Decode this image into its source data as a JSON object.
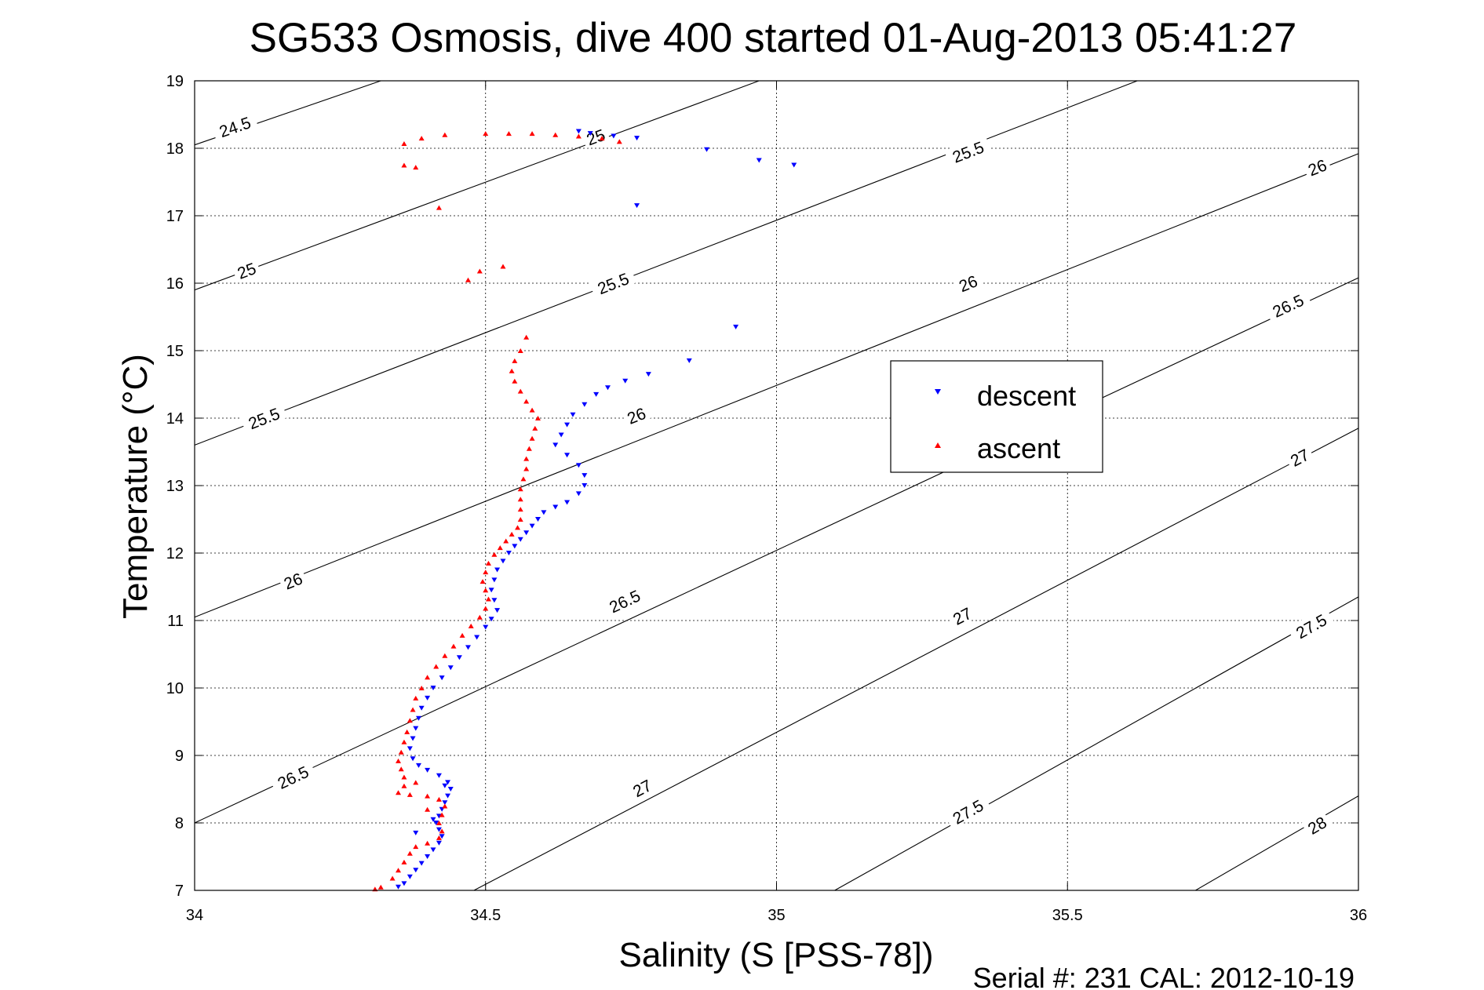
{
  "chart_data": {
    "type": "scatter",
    "title": "SG533 Osmosis, dive 400 started 01-Aug-2013 05:41:27",
    "xlabel": "Salinity (S [PSS-78])",
    "ylabel": "Temperature (°C)",
    "xlim": [
      34,
      36
    ],
    "ylim": [
      7,
      19
    ],
    "xticks": [
      "34",
      "34.5",
      "35",
      "35.5",
      "36"
    ],
    "yticks": [
      "7",
      "8",
      "9",
      "10",
      "11",
      "12",
      "13",
      "14",
      "15",
      "16",
      "17",
      "18",
      "19"
    ],
    "grid": true,
    "legend_position": "right",
    "footer": "Serial #: 231  CAL: 2012-10-19",
    "contours": [
      {
        "label": "24.5",
        "points": [
          [
            34,
            18.05
          ],
          [
            34.32,
            19
          ]
        ],
        "label_at": [
          34.07,
          18.3
        ]
      },
      {
        "label": "25",
        "points": [
          [
            34,
            15.9
          ],
          [
            34.97,
            19
          ]
        ],
        "label_at": [
          34.09,
          16.17
        ]
      },
      {
        "label": "25",
        "points": [
          [
            34,
            15.9
          ],
          [
            34.97,
            19
          ]
        ],
        "label_at": [
          34.69,
          18.15
        ]
      },
      {
        "label": "25.5",
        "points": [
          [
            34,
            13.6
          ],
          [
            35.62,
            19
          ]
        ],
        "label_at": [
          34.12,
          13.98
        ]
      },
      {
        "label": "25.5",
        "points": [
          [
            34,
            13.6
          ],
          [
            35.62,
            19
          ]
        ],
        "label_at": [
          34.72,
          15.98
        ]
      },
      {
        "label": "25.5",
        "points": [
          [
            34,
            13.6
          ],
          [
            35.62,
            19
          ]
        ],
        "label_at": [
          35.33,
          17.93
        ]
      },
      {
        "label": "26",
        "points": [
          [
            34,
            11.05
          ],
          [
            36,
            17.92
          ]
        ],
        "label_at": [
          34.17,
          11.57
        ]
      },
      {
        "label": "26",
        "points": [
          [
            34,
            11.05
          ],
          [
            36,
            17.92
          ]
        ],
        "label_at": [
          34.76,
          14.02
        ]
      },
      {
        "label": "26",
        "points": [
          [
            34,
            11.05
          ],
          [
            36,
            17.92
          ]
        ],
        "label_at": [
          35.33,
          15.98
        ]
      },
      {
        "label": "26",
        "points": [
          [
            34,
            11.05
          ],
          [
            36,
            17.92
          ]
        ],
        "label_at": [
          35.93,
          17.7
        ]
      },
      {
        "label": "26.5",
        "points": [
          [
            34,
            8.0
          ],
          [
            36,
            16.08
          ]
        ],
        "label_at": [
          34.17,
          8.66
        ]
      },
      {
        "label": "26.5",
        "points": [
          [
            34,
            8.0
          ],
          [
            36,
            16.08
          ]
        ],
        "label_at": [
          34.74,
          11.27
        ]
      },
      {
        "label": "26.5",
        "points": [
          [
            34,
            8.0
          ],
          [
            36,
            16.08
          ]
        ],
        "label_at": [
          35.88,
          15.65
        ]
      },
      {
        "label": "27",
        "points": [
          [
            34.48,
            7.0
          ],
          [
            36,
            13.85
          ]
        ],
        "label_at": [
          34.77,
          8.5
        ]
      },
      {
        "label": "27",
        "points": [
          [
            34.48,
            7.0
          ],
          [
            36,
            13.85
          ]
        ],
        "label_at": [
          35.32,
          11.05
        ]
      },
      {
        "label": "27",
        "points": [
          [
            34.48,
            7.0
          ],
          [
            36,
            13.85
          ]
        ],
        "label_at": [
          35.9,
          13.4
        ]
      },
      {
        "label": "27.5",
        "points": [
          [
            35.1,
            7.0
          ],
          [
            36,
            11.35
          ]
        ],
        "label_at": [
          35.33,
          8.15
        ]
      },
      {
        "label": "27.5",
        "points": [
          [
            35.1,
            7.0
          ],
          [
            36,
            11.35
          ]
        ],
        "label_at": [
          35.92,
          10.9
        ]
      },
      {
        "label": "28",
        "points": [
          [
            35.72,
            7.0
          ],
          [
            36,
            8.4
          ]
        ],
        "label_at": [
          35.93,
          7.95
        ]
      }
    ],
    "series": [
      {
        "name": "descent",
        "color": "#0000ff",
        "marker": "triangle-down",
        "points": [
          [
            34.66,
            18.25
          ],
          [
            34.68,
            18.22
          ],
          [
            34.72,
            18.18
          ],
          [
            34.76,
            18.15
          ],
          [
            34.88,
            17.98
          ],
          [
            34.97,
            17.82
          ],
          [
            35.03,
            17.75
          ],
          [
            34.76,
            17.15
          ],
          [
            34.93,
            15.35
          ],
          [
            34.85,
            14.85
          ],
          [
            34.78,
            14.65
          ],
          [
            34.74,
            14.55
          ],
          [
            34.71,
            14.45
          ],
          [
            34.69,
            14.35
          ],
          [
            34.67,
            14.2
          ],
          [
            34.65,
            14.05
          ],
          [
            34.64,
            13.9
          ],
          [
            34.63,
            13.75
          ],
          [
            34.62,
            13.6
          ],
          [
            34.64,
            13.45
          ],
          [
            34.66,
            13.3
          ],
          [
            34.67,
            13.15
          ],
          [
            34.67,
            13.0
          ],
          [
            34.66,
            12.88
          ],
          [
            34.64,
            12.75
          ],
          [
            34.62,
            12.68
          ],
          [
            34.6,
            12.6
          ],
          [
            34.59,
            12.5
          ],
          [
            34.58,
            12.4
          ],
          [
            34.57,
            12.3
          ],
          [
            34.56,
            12.2
          ],
          [
            34.55,
            12.1
          ],
          [
            34.54,
            12.0
          ],
          [
            34.53,
            11.88
          ],
          [
            34.52,
            11.75
          ],
          [
            34.515,
            11.6
          ],
          [
            34.51,
            11.45
          ],
          [
            34.515,
            11.3
          ],
          [
            34.52,
            11.15
          ],
          [
            34.51,
            11.02
          ],
          [
            34.5,
            10.9
          ],
          [
            34.485,
            10.75
          ],
          [
            34.47,
            10.6
          ],
          [
            34.455,
            10.45
          ],
          [
            34.44,
            10.3
          ],
          [
            34.425,
            10.15
          ],
          [
            34.41,
            10.0
          ],
          [
            34.4,
            9.85
          ],
          [
            34.39,
            9.7
          ],
          [
            34.385,
            9.55
          ],
          [
            34.38,
            9.4
          ],
          [
            34.375,
            9.25
          ],
          [
            34.37,
            9.1
          ],
          [
            34.375,
            8.95
          ],
          [
            34.385,
            8.85
          ],
          [
            34.4,
            8.78
          ],
          [
            34.42,
            8.7
          ],
          [
            34.435,
            8.6
          ],
          [
            34.44,
            8.5
          ],
          [
            34.435,
            8.4
          ],
          [
            34.43,
            8.3
          ],
          [
            34.425,
            8.2
          ],
          [
            34.42,
            8.1
          ],
          [
            34.415,
            8.0
          ],
          [
            34.42,
            7.9
          ],
          [
            34.425,
            7.8
          ],
          [
            34.42,
            7.7
          ],
          [
            34.41,
            7.6
          ],
          [
            34.4,
            7.5
          ],
          [
            34.39,
            7.4
          ],
          [
            34.38,
            7.3
          ],
          [
            34.37,
            7.2
          ],
          [
            34.36,
            7.1
          ],
          [
            34.35,
            7.05
          ],
          [
            34.43,
            8.55
          ],
          [
            34.41,
            8.05
          ],
          [
            34.38,
            7.85
          ]
        ]
      },
      {
        "name": "ascent",
        "color": "#ff0000",
        "marker": "triangle-up",
        "points": [
          [
            34.36,
            18.07
          ],
          [
            34.39,
            18.15
          ],
          [
            34.43,
            18.2
          ],
          [
            34.5,
            18.22
          ],
          [
            34.54,
            18.22
          ],
          [
            34.58,
            18.22
          ],
          [
            34.62,
            18.2
          ],
          [
            34.66,
            18.18
          ],
          [
            34.7,
            18.15
          ],
          [
            34.73,
            18.1
          ],
          [
            34.36,
            17.75
          ],
          [
            34.38,
            17.72
          ],
          [
            34.42,
            17.12
          ],
          [
            34.53,
            16.25
          ],
          [
            34.49,
            16.18
          ],
          [
            34.47,
            16.05
          ],
          [
            34.57,
            15.2
          ],
          [
            34.56,
            15.0
          ],
          [
            34.55,
            14.85
          ],
          [
            34.545,
            14.7
          ],
          [
            34.55,
            14.55
          ],
          [
            34.56,
            14.4
          ],
          [
            34.57,
            14.25
          ],
          [
            34.58,
            14.12
          ],
          [
            34.59,
            14.0
          ],
          [
            34.585,
            13.85
          ],
          [
            34.58,
            13.7
          ],
          [
            34.575,
            13.55
          ],
          [
            34.57,
            13.4
          ],
          [
            34.57,
            13.25
          ],
          [
            34.565,
            13.1
          ],
          [
            34.56,
            12.95
          ],
          [
            34.56,
            12.8
          ],
          [
            34.56,
            12.65
          ],
          [
            34.56,
            12.5
          ],
          [
            34.555,
            12.38
          ],
          [
            34.545,
            12.28
          ],
          [
            34.535,
            12.18
          ],
          [
            34.525,
            12.08
          ],
          [
            34.515,
            11.98
          ],
          [
            34.505,
            11.85
          ],
          [
            34.5,
            11.72
          ],
          [
            34.495,
            11.58
          ],
          [
            34.5,
            11.45
          ],
          [
            34.505,
            11.32
          ],
          [
            34.5,
            11.18
          ],
          [
            34.49,
            11.05
          ],
          [
            34.475,
            10.92
          ],
          [
            34.46,
            10.78
          ],
          [
            34.445,
            10.62
          ],
          [
            34.43,
            10.48
          ],
          [
            34.415,
            10.32
          ],
          [
            34.4,
            10.16
          ],
          [
            34.39,
            10.0
          ],
          [
            34.38,
            9.85
          ],
          [
            34.375,
            9.68
          ],
          [
            34.37,
            9.52
          ],
          [
            34.365,
            9.35
          ],
          [
            34.36,
            9.2
          ],
          [
            34.355,
            9.05
          ],
          [
            34.35,
            8.92
          ],
          [
            34.355,
            8.8
          ],
          [
            34.36,
            8.68
          ],
          [
            34.36,
            8.55
          ],
          [
            34.35,
            8.45
          ],
          [
            34.37,
            8.42
          ],
          [
            34.4,
            8.4
          ],
          [
            34.42,
            8.35
          ],
          [
            34.43,
            8.25
          ],
          [
            34.425,
            8.12
          ],
          [
            34.42,
            8.0
          ],
          [
            34.425,
            7.88
          ],
          [
            34.42,
            7.78
          ],
          [
            34.4,
            7.7
          ],
          [
            34.38,
            7.65
          ],
          [
            34.37,
            7.55
          ],
          [
            34.36,
            7.42
          ],
          [
            34.35,
            7.3
          ],
          [
            34.34,
            7.18
          ],
          [
            34.32,
            7.05
          ],
          [
            34.31,
            7.02
          ],
          [
            34.4,
            8.2
          ],
          [
            34.38,
            8.6
          ]
        ]
      }
    ]
  }
}
